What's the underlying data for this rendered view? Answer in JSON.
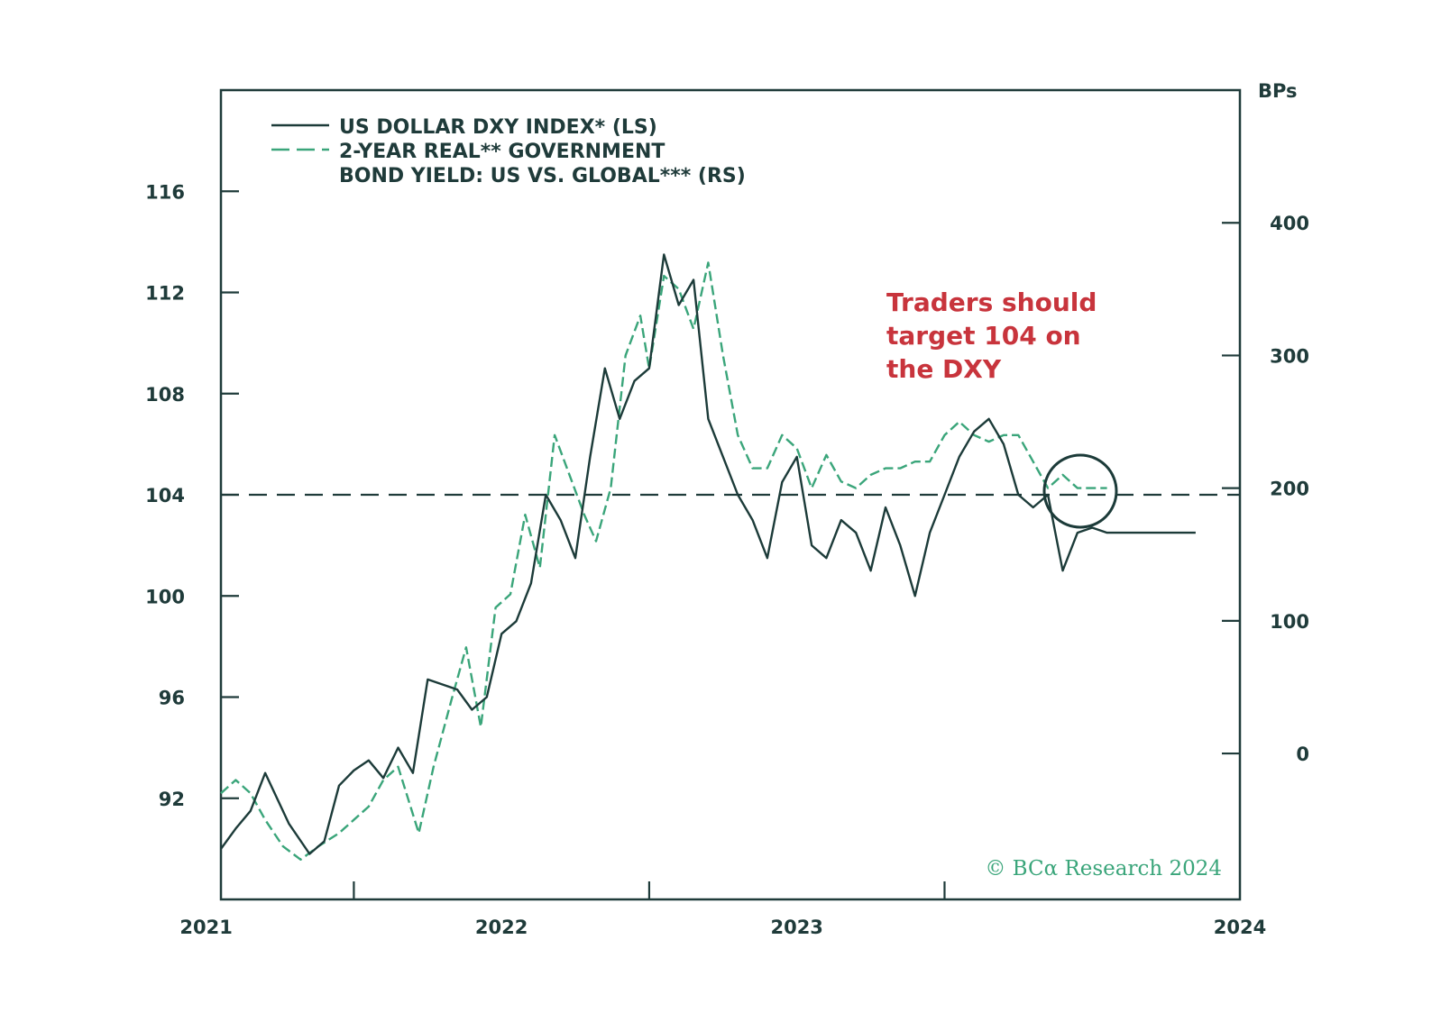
{
  "chart_data": {
    "type": "line",
    "title": "",
    "xlabel": "",
    "ylabel_left": "",
    "ylabel_right": "BPs",
    "x_range": [
      2020.55,
      2024.0
    ],
    "x_ticks": [
      "2021",
      "2022",
      "2023",
      "2024"
    ],
    "left_axis": {
      "ylim": [
        88,
        120
      ],
      "ticks": [
        "116",
        "112",
        "108",
        "104",
        "100",
        "96",
        "92"
      ]
    },
    "right_axis": {
      "ylim": [
        -110,
        500
      ],
      "ticks": [
        "400",
        "300",
        "200",
        "100",
        "0"
      ]
    },
    "legend": [
      {
        "label": "US DOLLAR DXY INDEX* (LS)",
        "style": "solid"
      },
      {
        "label": "2-YEAR REAL** GOVERNMENT",
        "style": "dashed"
      },
      {
        "label": "BOND YIELD: US VS. GLOBAL*** (RS)",
        "style": "none"
      }
    ],
    "reference_line": {
      "axis": "left",
      "value": 104,
      "style": "dashed"
    },
    "annotation": [
      "Traders should",
      "target 104 on",
      "the DXY"
    ],
    "credit": "© BCα Research 2024",
    "colors": {
      "dxy": "#1c3b39",
      "yield": "#3aa57a",
      "annotation": "#c8343c",
      "frame": "#1f3b3a"
    },
    "series": [
      {
        "name": "US DOLLAR DXY INDEX* (LS)",
        "axis": "left",
        "x": [
          2020.55,
          2020.6,
          2020.65,
          2020.7,
          2020.78,
          2020.85,
          2020.9,
          2020.95,
          2021.0,
          2021.05,
          2021.1,
          2021.15,
          2021.2,
          2021.25,
          2021.3,
          2021.35,
          2021.4,
          2021.45,
          2021.5,
          2021.55,
          2021.6,
          2021.65,
          2021.7,
          2021.75,
          2021.8,
          2021.85,
          2021.9,
          2021.95,
          2022.0,
          2022.05,
          2022.1,
          2022.15,
          2022.2,
          2022.25,
          2022.3,
          2022.35,
          2022.4,
          2022.45,
          2022.5,
          2022.55,
          2022.6,
          2022.65,
          2022.7,
          2022.75,
          2022.8,
          2022.85,
          2022.9,
          2022.95,
          2023.0,
          2023.05,
          2023.1,
          2023.15,
          2023.2,
          2023.25,
          2023.3,
          2023.35,
          2023.4,
          2023.45,
          2023.5,
          2023.55,
          2023.6,
          2023.65,
          2023.7,
          2023.75,
          2023.8,
          2023.85
        ],
        "values": [
          90.0,
          90.8,
          91.5,
          93.0,
          91.0,
          89.8,
          90.3,
          92.5,
          93.1,
          93.5,
          92.8,
          94.0,
          93.0,
          96.7,
          96.5,
          96.3,
          95.5,
          96.0,
          98.5,
          99.0,
          100.5,
          104.0,
          103.0,
          101.5,
          105.5,
          109.0,
          107.0,
          108.5,
          109.0,
          113.5,
          111.5,
          112.5,
          107.0,
          105.5,
          104.0,
          103.0,
          101.5,
          104.5,
          105.5,
          102.0,
          101.5,
          103.0,
          102.5,
          101.0,
          103.5,
          102.0,
          100.0,
          102.5,
          104.0,
          105.5,
          106.5,
          107.0,
          106.0,
          104.0,
          103.5,
          104.0,
          101.0,
          102.5,
          102.7,
          102.5,
          102.5,
          102.5,
          102.5,
          102.5,
          102.5,
          102.5
        ]
      },
      {
        "name": "2-YEAR REAL** GOVERNMENT BOND YIELD: US VS. GLOBAL*** (RS)",
        "axis": "right",
        "x": [
          2020.55,
          2020.6,
          2020.65,
          2020.7,
          2020.76,
          2020.82,
          2020.88,
          2020.95,
          2021.0,
          2021.05,
          2021.1,
          2021.15,
          2021.22,
          2021.27,
          2021.33,
          2021.38,
          2021.43,
          2021.48,
          2021.53,
          2021.58,
          2021.63,
          2021.68,
          2021.73,
          2021.78,
          2021.82,
          2021.87,
          2021.92,
          2021.97,
          2022.0,
          2022.05,
          2022.1,
          2022.15,
          2022.2,
          2022.25,
          2022.3,
          2022.35,
          2022.4,
          2022.45,
          2022.5,
          2022.55,
          2022.6,
          2022.65,
          2022.7,
          2022.75,
          2022.8,
          2022.85,
          2022.9,
          2022.95,
          2023.0,
          2023.05,
          2023.1,
          2023.15,
          2023.2,
          2023.25,
          2023.3,
          2023.35,
          2023.4,
          2023.45,
          2023.5,
          2023.55
        ],
        "values": [
          -30,
          -20,
          -30,
          -50,
          -70,
          -80,
          -70,
          -60,
          -50,
          -40,
          -20,
          -10,
          -60,
          -10,
          40,
          80,
          20,
          110,
          120,
          180,
          140,
          240,
          210,
          180,
          160,
          200,
          300,
          330,
          290,
          360,
          350,
          320,
          370,
          300,
          240,
          215,
          215,
          240,
          230,
          200,
          225,
          205,
          200,
          210,
          215,
          215,
          220,
          220,
          240,
          250,
          240,
          235,
          240,
          240,
          220,
          200,
          210,
          200,
          200,
          200
        ]
      }
    ]
  }
}
